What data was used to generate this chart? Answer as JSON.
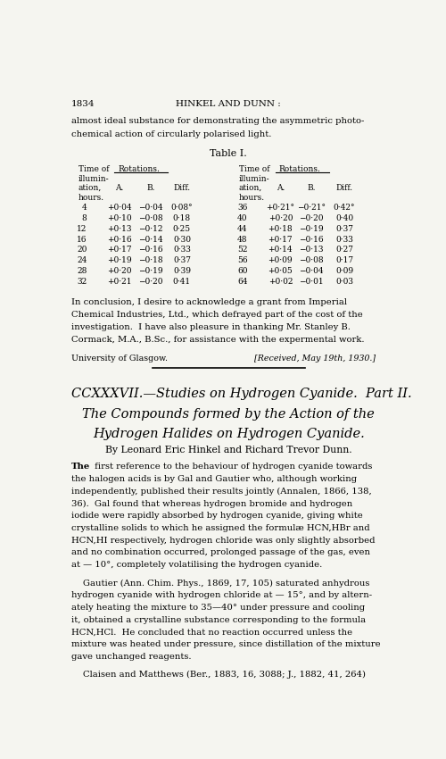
{
  "bg_color": "#f5f5f0",
  "page_number": "1834",
  "header_center": "HINKEL AND DUNN :",
  "intro_lines": [
    "almost ideal substance for demonstrating the asymmetric photo-",
    "chemical action of circularly polarised light."
  ],
  "table_title": "Table I.",
  "table_data_left": [
    [
      "4",
      "+0·04",
      "−0·04",
      "0·08°"
    ],
    [
      "8",
      "+0·10",
      "−0·08",
      "0·18"
    ],
    [
      "12",
      "+0·13",
      "−0·12",
      "0·25"
    ],
    [
      "16",
      "+0·16",
      "−0·14",
      "0·30"
    ],
    [
      "20",
      "+0·17",
      "−0·16",
      "0·33"
    ],
    [
      "24",
      "+0·19",
      "−0·18",
      "0·37"
    ],
    [
      "28",
      "+0·20",
      "−0·19",
      "0·39"
    ],
    [
      "32",
      "+0·21",
      "−0·20",
      "0·41"
    ]
  ],
  "table_data_right": [
    [
      "36",
      "+0·21°",
      "−0·21°",
      "0·42°"
    ],
    [
      "40",
      "+0·20",
      "−0·20",
      "0·40"
    ],
    [
      "44",
      "+0·18",
      "−0·19",
      "0·37"
    ],
    [
      "48",
      "+0·17",
      "−0·16",
      "0·33"
    ],
    [
      "52",
      "+0·14",
      "−0·13",
      "0·27"
    ],
    [
      "56",
      "+0·09",
      "−0·08",
      "0·17"
    ],
    [
      "60",
      "+0·05",
      "−0·04",
      "0·09"
    ],
    [
      "64",
      "+0·02",
      "−0·01",
      "0·03"
    ]
  ],
  "conclusion_lines": [
    "In conclusion, I desire to acknowledge a grant from Imperial",
    "Chemical Industries, Ltd., which defrayed part of the cost of the",
    "investigation.  I have also pleasure in thanking Mr. Stanley B.",
    "Cormack, M.A., B.Sc., for assistance with the expermental work."
  ],
  "university": "University of Glasgow.",
  "received": "[Received, May 19th, 1930.]",
  "new_section_title_line1": "CCXXXVII.—Studies on Hydrogen Cyanide.  Part II.",
  "new_section_title_line2": "The Compounds formed by the Action of the",
  "new_section_title_line3": "Hydrogen Halides on Hydrogen Cyanide.",
  "by_line": "By Leonard Eric Hinkel and Richard Trevor Dunn.",
  "paragraph1_lines": [
    "The first reference to the behaviour of hydrogen cyanide towards",
    "the halogen acids is by Gal and Gautier who, although working",
    "independently, published their results jointly (Annalen, 1866, 138,",
    "36).  Gal found that whereas hydrogen bromide and hydrogen",
    "iodide were rapidly absorbed by hydrogen cyanide, giving white",
    "crystalline solids to which he assigned the formulæ HCN,HBr and",
    "HCN,HI respectively, hydrogen chloride was only slightly absorbed",
    "and no combination occurred, prolonged passage of the gas, even",
    "at — 10°, completely volatilising the hydrogen cyanide."
  ],
  "paragraph2_lines": [
    "Gautier (Ann. Chim. Phys., 1869, 17, 105) saturated anhydrous",
    "hydrogen cyanide with hydrogen chloride at — 15°, and by altern-",
    "ately heating the mixture to 35—40° under pressure and cooling",
    "it, obtained a crystalline substance corresponding to the formula",
    "HCN,HCl.  He concluded that no reaction occurred unless the",
    "mixture was heated under pressure, since distillation of the mixture",
    "gave unchanged reagents."
  ],
  "paragraph3_start": "Claisen and Matthews (Ber., 1883, 16, 3088; J., 1882, 41, 264)"
}
